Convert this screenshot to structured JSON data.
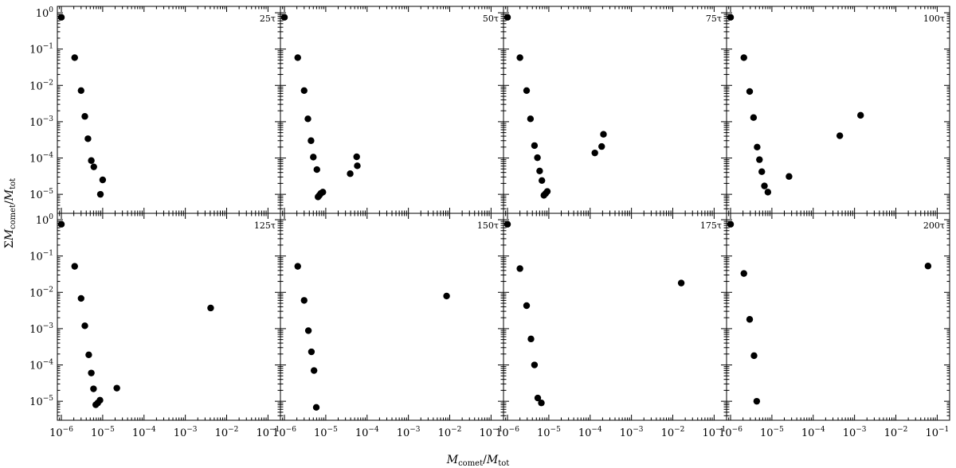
{
  "figure": {
    "xlabel": {
      "main": "M",
      "sub": "comet",
      "sep": "/",
      "main2": "M",
      "sub2": "tot"
    },
    "ylabel": {
      "prefix": "Σ",
      "main": "M",
      "sub": "comet",
      "sep": "/",
      "main2": "M",
      "sub2": "tot"
    }
  },
  "chart_data": [
    {
      "type": "scatter",
      "title": "25τ",
      "xscale": "log",
      "yscale": "log",
      "xlim": [
        8e-07,
        0.2
      ],
      "ylim": [
        3e-06,
        1.5
      ],
      "x_ticks": [
        "10^-6",
        "10^-5",
        "10^-4",
        "10^-3",
        "10^-2",
        "10^-1"
      ],
      "y_ticks": [
        "10^0",
        "10^-1",
        "10^-2",
        "10^-3",
        "10^-4",
        "10^-5"
      ],
      "points": [
        [
          1e-06,
          0.75
        ],
        [
          2.1e-06,
          0.058
        ],
        [
          3e-06,
          0.0072
        ],
        [
          3.7e-06,
          0.0014
        ],
        [
          4.4e-06,
          0.00034
        ],
        [
          5.3e-06,
          8.5e-05
        ],
        [
          6.1e-06,
          5.7e-05
        ],
        [
          8.8e-06,
          1e-05
        ],
        [
          1e-05,
          2.5e-05
        ]
      ]
    },
    {
      "type": "scatter",
      "title": "50τ",
      "xscale": "log",
      "yscale": "log",
      "xlim": [
        8e-07,
        0.2
      ],
      "ylim": [
        3e-06,
        1.5
      ],
      "x_ticks": [
        "10^-6",
        "10^-5",
        "10^-4",
        "10^-3",
        "10^-2",
        "10^-1"
      ],
      "y_ticks": [
        "10^0",
        "10^-1",
        "10^-2",
        "10^-3",
        "10^-4",
        "10^-5"
      ],
      "points": [
        [
          1e-06,
          0.75
        ],
        [
          2.1e-06,
          0.058
        ],
        [
          3e-06,
          0.0072
        ],
        [
          3.7e-06,
          0.0012
        ],
        [
          4.4e-06,
          0.0003
        ],
        [
          5e-06,
          0.000106
        ],
        [
          6.1e-06,
          4.8e-05
        ],
        [
          6.5e-06,
          8.5e-06
        ],
        [
          7e-06,
          9.4e-06
        ],
        [
          7.6e-06,
          1.06e-05
        ],
        [
          8.5e-06,
          1.15e-05
        ],
        [
          3.9e-05,
          3.7e-05
        ],
        [
          5.6e-05,
          0.000108
        ],
        [
          5.8e-05,
          6.1e-05
        ]
      ]
    },
    {
      "type": "scatter",
      "title": "75τ",
      "xscale": "log",
      "yscale": "log",
      "xlim": [
        8e-07,
        0.2
      ],
      "ylim": [
        3e-06,
        1.5
      ],
      "x_ticks": [
        "10^-6",
        "10^-5",
        "10^-4",
        "10^-3",
        "10^-2",
        "10^-1"
      ],
      "y_ticks": [
        "10^0",
        "10^-1",
        "10^-2",
        "10^-3",
        "10^-4",
        "10^-5"
      ],
      "points": [
        [
          1e-06,
          0.75
        ],
        [
          2e-06,
          0.058
        ],
        [
          2.9e-06,
          0.0072
        ],
        [
          3.6e-06,
          0.0012
        ],
        [
          4.5e-06,
          0.00022
        ],
        [
          5.3e-06,
          0.000102
        ],
        [
          6e-06,
          4.4e-05
        ],
        [
          6.8e-06,
          2.4e-05
        ],
        [
          7.6e-06,
          9.4e-06
        ],
        [
          8.4e-06,
          1.06e-05
        ],
        [
          9.2e-06,
          1.2e-05
        ],
        [
          0.00013,
          0.000138
        ],
        [
          0.00019,
          0.000207
        ],
        [
          0.00021,
          0.00045
        ]
      ]
    },
    {
      "type": "scatter",
      "title": "100τ",
      "xscale": "log",
      "yscale": "log",
      "xlim": [
        8e-07,
        0.2
      ],
      "ylim": [
        3e-06,
        1.5
      ],
      "x_ticks": [
        "10^-6",
        "10^-5",
        "10^-4",
        "10^-3",
        "10^-2",
        "10^-1"
      ],
      "y_ticks": [
        "10^0",
        "10^-1",
        "10^-2",
        "10^-3",
        "10^-4",
        "10^-5"
      ],
      "points": [
        [
          1e-06,
          0.75
        ],
        [
          2.1e-06,
          0.058
        ],
        [
          2.9e-06,
          0.0068
        ],
        [
          3.6e-06,
          0.0013
        ],
        [
          4.4e-06,
          0.0002
        ],
        [
          5e-06,
          9e-05
        ],
        [
          5.7e-06,
          4.2e-05
        ],
        [
          6.6e-06,
          1.7e-05
        ],
        [
          8e-06,
          1.15e-05
        ],
        [
          2.6e-05,
          3.1e-05
        ],
        [
          0.00044,
          0.00041
        ],
        [
          0.0014,
          0.0015
        ]
      ]
    },
    {
      "type": "scatter",
      "title": "125τ",
      "xscale": "log",
      "yscale": "log",
      "xlim": [
        8e-07,
        0.2
      ],
      "ylim": [
        3e-06,
        1.5
      ],
      "x_ticks": [
        "10^-6",
        "10^-5",
        "10^-4",
        "10^-3",
        "10^-2",
        "10^-1"
      ],
      "y_ticks": [
        "10^0",
        "10^-1",
        "10^-2",
        "10^-3",
        "10^-4",
        "10^-5"
      ],
      "points": [
        [
          1e-06,
          0.75
        ],
        [
          2.1e-06,
          0.052
        ],
        [
          3e-06,
          0.0068
        ],
        [
          3.7e-06,
          0.0012
        ],
        [
          4.6e-06,
          0.00019
        ],
        [
          5.3e-06,
          6e-05
        ],
        [
          6e-06,
          2.2e-05
        ],
        [
          6.8e-06,
          8e-06
        ],
        [
          7.6e-06,
          9e-06
        ],
        [
          8.6e-06,
          1.07e-05
        ],
        [
          2.2e-05,
          2.3e-05
        ],
        [
          0.0041,
          0.0037
        ]
      ]
    },
    {
      "type": "scatter",
      "title": "150τ",
      "xscale": "log",
      "yscale": "log",
      "xlim": [
        8e-07,
        0.2
      ],
      "ylim": [
        3e-06,
        1.5
      ],
      "x_ticks": [
        "10^-6",
        "10^-5",
        "10^-4",
        "10^-3",
        "10^-2",
        "10^-1"
      ],
      "y_ticks": [
        "10^0",
        "10^-1",
        "10^-2",
        "10^-3",
        "10^-4",
        "10^-5"
      ],
      "points": [
        [
          2.1e-06,
          0.052
        ],
        [
          3e-06,
          0.006
        ],
        [
          3.8e-06,
          0.00088
        ],
        [
          4.5e-06,
          0.00023
        ],
        [
          5.2e-06,
          7e-05
        ],
        [
          5.9e-06,
          6.8e-06
        ],
        [
          0.0084,
          0.0079
        ]
      ]
    },
    {
      "type": "scatter",
      "title": "175τ",
      "xscale": "log",
      "yscale": "log",
      "xlim": [
        8e-07,
        0.2
      ],
      "ylim": [
        3e-06,
        1.5
      ],
      "x_ticks": [
        "10^-6",
        "10^-5",
        "10^-4",
        "10^-3",
        "10^-2",
        "10^-1"
      ],
      "y_ticks": [
        "10^0",
        "10^-1",
        "10^-2",
        "10^-3",
        "10^-4",
        "10^-5"
      ],
      "points": [
        [
          1e-06,
          0.75
        ],
        [
          2e-06,
          0.045
        ],
        [
          2.9e-06,
          0.0043
        ],
        [
          3.7e-06,
          0.00052
        ],
        [
          4.5e-06,
          0.0001
        ],
        [
          5.4e-06,
          1.23e-05
        ],
        [
          6.6e-06,
          9e-06
        ],
        [
          0.016,
          0.018
        ]
      ]
    },
    {
      "type": "scatter",
      "title": "200τ",
      "xscale": "log",
      "yscale": "log",
      "xlim": [
        8e-07,
        0.2
      ],
      "ylim": [
        3e-06,
        1.5
      ],
      "x_ticks": [
        "10^-6",
        "10^-5",
        "10^-4",
        "10^-3",
        "10^-2",
        "10^-1"
      ],
      "y_ticks": [
        "10^0",
        "10^-1",
        "10^-2",
        "10^-3",
        "10^-4",
        "10^-5"
      ],
      "points": [
        [
          1e-06,
          0.75
        ],
        [
          2.1e-06,
          0.033
        ],
        [
          2.9e-06,
          0.0018
        ],
        [
          3.7e-06,
          0.00018
        ],
        [
          4.3e-06,
          1e-05
        ],
        [
          0.06,
          0.053
        ]
      ]
    }
  ]
}
